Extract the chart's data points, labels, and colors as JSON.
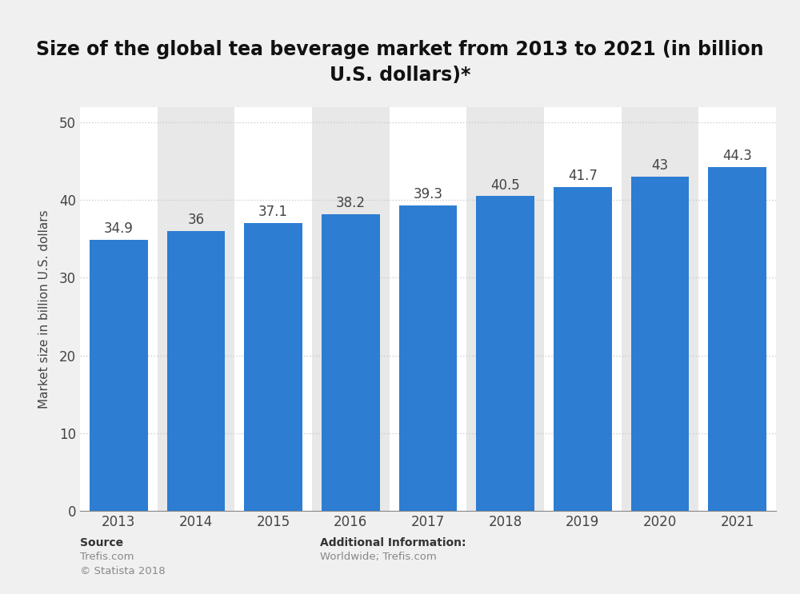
{
  "title": "Size of the global tea beverage market from 2013 to 2021 (in billion\nU.S. dollars)*",
  "years": [
    "2013",
    "2014",
    "2015",
    "2016",
    "2017",
    "2018",
    "2019",
    "2020",
    "2021"
  ],
  "values": [
    34.9,
    36,
    37.1,
    38.2,
    39.3,
    40.5,
    41.7,
    43,
    44.3
  ],
  "bar_color": "#2d7dd2",
  "background_color": "#f0f0f0",
  "plot_bg_color": "#f0f0f0",
  "col_bg_even": "#e8e8e8",
  "col_bg_odd": "#ffffff",
  "ylabel": "Market size in billion U.S. dollars",
  "ylim": [
    0,
    52
  ],
  "yticks": [
    0,
    10,
    20,
    30,
    40,
    50
  ],
  "grid_color": "#cccccc",
  "title_fontsize": 17,
  "label_fontsize": 11,
  "tick_fontsize": 12,
  "bar_label_fontsize": 12,
  "source_label": "Source",
  "source_body": "Trefis.com\n© Statista 2018",
  "additional_label": "Additional Information:",
  "additional_body": "Worldwide; Trefis.com"
}
